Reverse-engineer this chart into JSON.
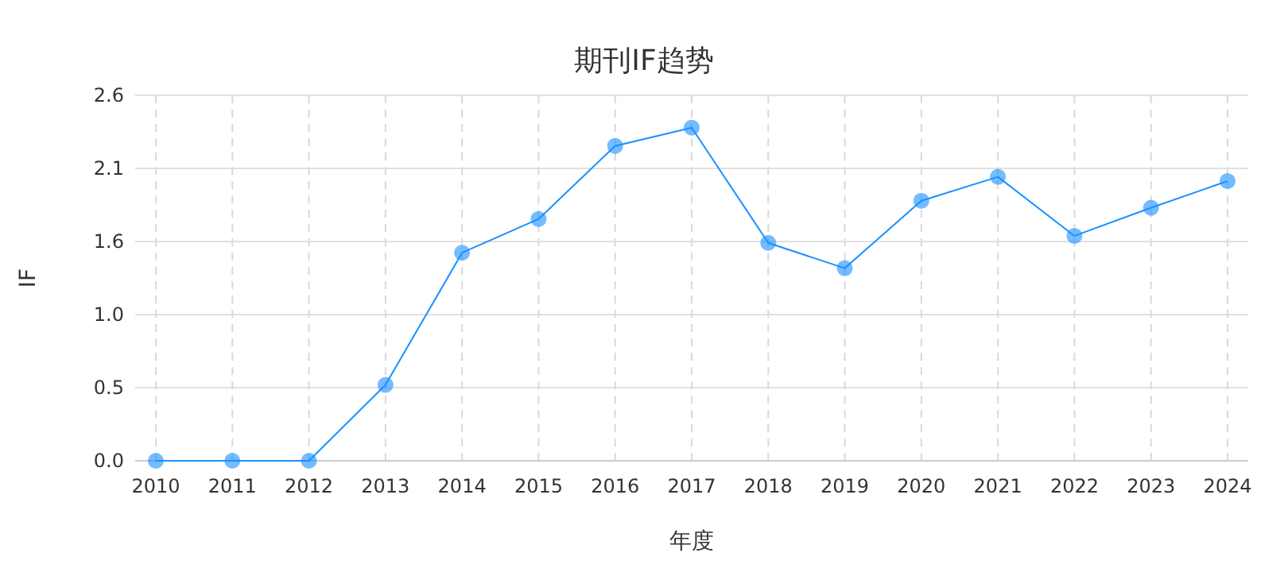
{
  "chart_data": {
    "type": "line",
    "title": "期刊IF趋势",
    "xlabel": "年度",
    "ylabel": "IF",
    "categories": [
      "2010",
      "2011",
      "2012",
      "2013",
      "2014",
      "2015",
      "2016",
      "2017",
      "2018",
      "2019",
      "2020",
      "2021",
      "2022",
      "2023",
      "2024"
    ],
    "series": [
      {
        "color": "#1890ff",
        "values": [
          0,
          0,
          0,
          0.54,
          1.48,
          1.72,
          2.24,
          2.37,
          1.55,
          1.37,
          1.85,
          2.02,
          1.6,
          1.8,
          1.99
        ]
      }
    ],
    "ylim": [
      0,
      2.6
    ],
    "yticks": [
      {
        "value": 0,
        "label": "0.0"
      },
      {
        "value": 0.52,
        "label": "0.5"
      },
      {
        "value": 1.04,
        "label": "1.0"
      },
      {
        "value": 1.56,
        "label": "1.6"
      },
      {
        "value": 2.08,
        "label": "2.1"
      },
      {
        "value": 2.6,
        "label": "2.6"
      }
    ],
    "grid": true,
    "marker": "circle",
    "line_style": "solid"
  }
}
